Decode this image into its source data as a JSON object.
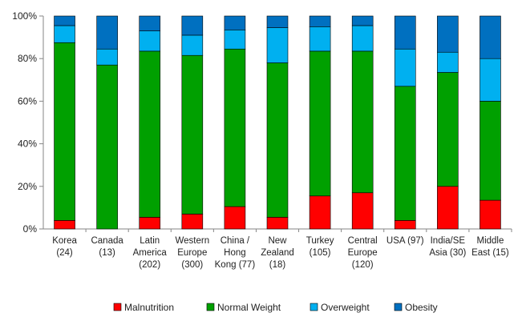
{
  "chart_data": {
    "type": "bar",
    "stacked": true,
    "orientation": "vertical",
    "title": "",
    "xlabel": "",
    "ylabel": "",
    "ylim": [
      0,
      100
    ],
    "y_tick_format": "percent",
    "y_ticks": [
      "0%",
      "20%",
      "40%",
      "60%",
      "80%",
      "100%"
    ],
    "y_tick_values": [
      0,
      20,
      40,
      60,
      80,
      100
    ],
    "grid": false,
    "legend_position": "bottom",
    "categories": [
      "Korea (24)",
      "Canada (13)",
      "Latin America (202)",
      "Western Europe (300)",
      "China / Hong Kong (77)",
      "New Zealand (18)",
      "Turkey (105)",
      "Central Europe (120)",
      "USA (97)",
      "India/SE Asia (30)",
      "Middle East (15)"
    ],
    "category_label_lines": [
      [
        "Korea",
        "(24)"
      ],
      [
        "Canada",
        "(13)"
      ],
      [
        "Latin",
        "America",
        "(202)"
      ],
      [
        "Western",
        "Europe",
        "(300)"
      ],
      [
        "China /",
        "Hong",
        "Kong (77)"
      ],
      [
        "New",
        "Zealand",
        "(18)"
      ],
      [
        "Turkey",
        "(105)"
      ],
      [
        "Central",
        "Europe",
        "(120)"
      ],
      [
        "USA (97)"
      ],
      [
        "India/SE",
        "Asia (30)"
      ],
      [
        "Middle",
        "East (15)"
      ]
    ],
    "series": [
      {
        "name": "Malnutrition",
        "color": "#ff0000",
        "values": [
          4,
          0,
          5.5,
          7,
          10.5,
          5.5,
          15.5,
          17,
          4,
          20,
          13.5
        ]
      },
      {
        "name": "Normal Weight",
        "color": "#00a000",
        "values": [
          83.5,
          77,
          78,
          74.5,
          74,
          72.5,
          68,
          66.5,
          63,
          53.5,
          46.5
        ]
      },
      {
        "name": "Overweight",
        "color": "#00b0f0",
        "values": [
          8,
          7.5,
          9.5,
          9.5,
          9,
          16.5,
          11.5,
          12,
          17.5,
          9.5,
          20
        ]
      },
      {
        "name": "Obesity",
        "color": "#0070c0",
        "values": [
          4.5,
          15.5,
          7,
          9,
          6.5,
          5.5,
          5,
          4.5,
          15.5,
          17,
          20
        ]
      }
    ]
  }
}
